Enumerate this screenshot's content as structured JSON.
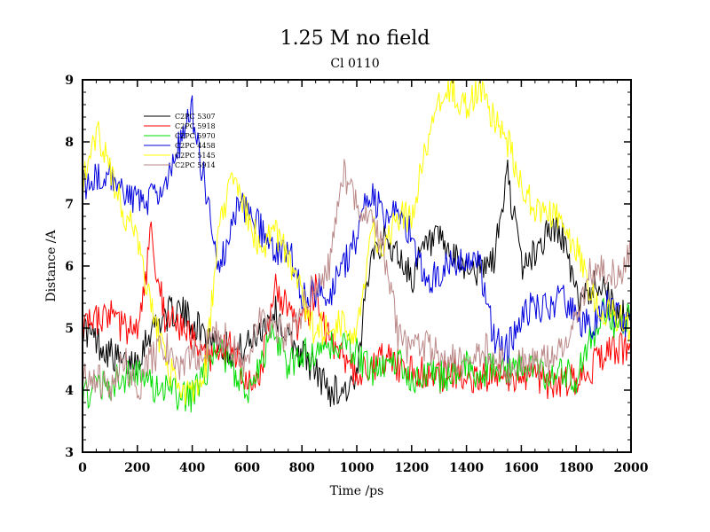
{
  "chart_data": {
    "type": "line",
    "title": "1.25 M no field",
    "subtitle": "Cl 0110",
    "xlabel": "Time /ps",
    "ylabel": "Distance /A",
    "xlim": [
      0,
      2000
    ],
    "ylim": [
      3,
      9
    ],
    "xticks": [
      0,
      200,
      400,
      600,
      800,
      1000,
      1200,
      1400,
      1600,
      1800,
      2000
    ],
    "yticks": [
      3,
      4,
      5,
      6,
      7,
      8,
      9
    ],
    "legend_position": "top-left",
    "series": [
      {
        "name": "C2PC 5307",
        "color": "#000000",
        "x": [
          0,
          50,
          100,
          150,
          200,
          250,
          300,
          350,
          400,
          450,
          500,
          550,
          600,
          650,
          700,
          750,
          800,
          850,
          900,
          950,
          1000,
          1050,
          1100,
          1150,
          1200,
          1250,
          1300,
          1350,
          1400,
          1450,
          1500,
          1550,
          1600,
          1650,
          1700,
          1750,
          1800,
          1850,
          1900,
          1950,
          2000
        ],
        "y": [
          5.0,
          4.8,
          4.6,
          4.4,
          4.5,
          5.0,
          5.2,
          5.3,
          5.1,
          4.9,
          4.8,
          4.6,
          4.7,
          5.0,
          5.3,
          4.8,
          4.6,
          4.3,
          4.0,
          4.0,
          4.1,
          6.3,
          6.4,
          6.2,
          5.8,
          6.3,
          6.4,
          6.1,
          6.0,
          5.9,
          6.1,
          7.5,
          6.0,
          6.2,
          6.6,
          6.5,
          5.5,
          5.6,
          5.8,
          5.1,
          5.3
        ]
      },
      {
        "name": "C2PC 5918",
        "color": "#ff0000",
        "x": [
          0,
          50,
          100,
          150,
          200,
          250,
          300,
          350,
          400,
          450,
          500,
          550,
          600,
          650,
          700,
          750,
          800,
          850,
          900,
          950,
          1000,
          1050,
          1100,
          1150,
          1200,
          1250,
          1300,
          1350,
          1400,
          1450,
          1500,
          1550,
          1600,
          1650,
          1700,
          1750,
          1800,
          1850,
          1900,
          1950,
          2000
        ],
        "y": [
          5.0,
          5.1,
          5.2,
          5.0,
          4.9,
          6.5,
          5.2,
          5.0,
          4.8,
          4.5,
          4.6,
          4.7,
          4.0,
          4.3,
          5.8,
          5.2,
          5.0,
          5.6,
          4.8,
          4.5,
          4.3,
          4.4,
          4.5,
          4.4,
          4.3,
          4.3,
          4.2,
          4.3,
          4.2,
          4.2,
          4.3,
          4.1,
          4.2,
          4.2,
          4.1,
          4.1,
          4.2,
          4.3,
          4.6,
          4.7,
          4.6
        ]
      },
      {
        "name": "C2PC 5970",
        "color": "#00dd00",
        "x": [
          0,
          50,
          100,
          150,
          200,
          250,
          300,
          350,
          400,
          450,
          500,
          550,
          600,
          650,
          700,
          750,
          800,
          850,
          900,
          950,
          1000,
          1050,
          1100,
          1150,
          1200,
          1250,
          1300,
          1350,
          1400,
          1450,
          1500,
          1550,
          1600,
          1650,
          1700,
          1750,
          1800,
          1850,
          1900,
          1950,
          2000
        ],
        "y": [
          3.9,
          4.0,
          4.1,
          4.2,
          4.3,
          4.1,
          4.0,
          3.9,
          3.9,
          4.3,
          4.7,
          4.3,
          4.0,
          4.5,
          4.9,
          4.4,
          4.6,
          4.5,
          4.7,
          4.8,
          4.6,
          4.3,
          4.4,
          4.5,
          4.2,
          4.3,
          4.2,
          4.3,
          4.4,
          4.2,
          4.4,
          4.3,
          4.4,
          4.4,
          4.1,
          4.3,
          4.2,
          4.8,
          5.3,
          5.0,
          5.3
        ]
      },
      {
        "name": "C2PC 4458",
        "color": "#0000dd",
        "x": [
          0,
          50,
          100,
          150,
          200,
          250,
          300,
          350,
          400,
          450,
          500,
          550,
          600,
          650,
          700,
          750,
          800,
          850,
          900,
          950,
          1000,
          1050,
          1100,
          1150,
          1200,
          1250,
          1300,
          1350,
          1400,
          1450,
          1500,
          1550,
          1600,
          1650,
          1700,
          1750,
          1800,
          1850,
          1900,
          1950,
          2000
        ],
        "y": [
          7.3,
          7.4,
          7.5,
          7.2,
          7.0,
          7.1,
          7.3,
          7.9,
          8.5,
          7.2,
          6.0,
          6.8,
          7.0,
          6.6,
          6.2,
          6.3,
          5.5,
          5.6,
          5.5,
          6.0,
          6.5,
          7.2,
          6.8,
          6.9,
          6.5,
          5.7,
          5.9,
          6.0,
          6.2,
          6.0,
          4.8,
          4.7,
          5.2,
          5.4,
          5.3,
          5.5,
          5.2,
          5.0,
          5.4,
          5.2,
          5.0
        ]
      },
      {
        "name": "C2PC 5145",
        "color": "#ffff00",
        "x": [
          0,
          50,
          100,
          150,
          200,
          250,
          300,
          350,
          400,
          450,
          500,
          550,
          600,
          650,
          700,
          750,
          800,
          850,
          900,
          950,
          1000,
          1050,
          1100,
          1150,
          1200,
          1250,
          1300,
          1350,
          1400,
          1450,
          1500,
          1550,
          1600,
          1650,
          1700,
          1750,
          1800,
          1850,
          1900,
          1950,
          2000
        ],
        "y": [
          7.4,
          8.2,
          7.6,
          6.8,
          6.5,
          5.3,
          4.5,
          4.0,
          3.9,
          4.4,
          6.8,
          7.4,
          6.8,
          6.3,
          6.5,
          6.2,
          5.5,
          4.9,
          5.1,
          5.0,
          4.8,
          6.6,
          6.3,
          6.8,
          6.8,
          7.8,
          8.7,
          8.8,
          8.6,
          8.9,
          8.4,
          8.0,
          7.3,
          6.9,
          6.9,
          6.7,
          6.3,
          5.6,
          5.3,
          5.2,
          5.0
        ]
      },
      {
        "name": "C2PC 5914",
        "color": "#bb8888",
        "x": [
          0,
          50,
          100,
          150,
          200,
          250,
          300,
          350,
          400,
          450,
          500,
          550,
          600,
          650,
          700,
          750,
          800,
          850,
          900,
          950,
          1000,
          1050,
          1100,
          1150,
          1200,
          1250,
          1300,
          1350,
          1400,
          1450,
          1500,
          1550,
          1600,
          1650,
          1700,
          1750,
          1800,
          1850,
          1900,
          1950,
          2000
        ],
        "y": [
          4.3,
          4.2,
          4.0,
          4.5,
          4.0,
          4.5,
          4.7,
          4.4,
          4.5,
          4.7,
          4.9,
          4.7,
          4.4,
          5.2,
          5.0,
          4.8,
          5.3,
          5.7,
          6.0,
          7.5,
          7.0,
          6.8,
          6.2,
          4.9,
          4.6,
          4.7,
          4.6,
          4.5,
          4.4,
          4.6,
          4.7,
          4.3,
          4.5,
          4.4,
          4.5,
          4.8,
          5.2,
          5.9,
          6.0,
          5.8,
          6.2
        ]
      }
    ]
  }
}
